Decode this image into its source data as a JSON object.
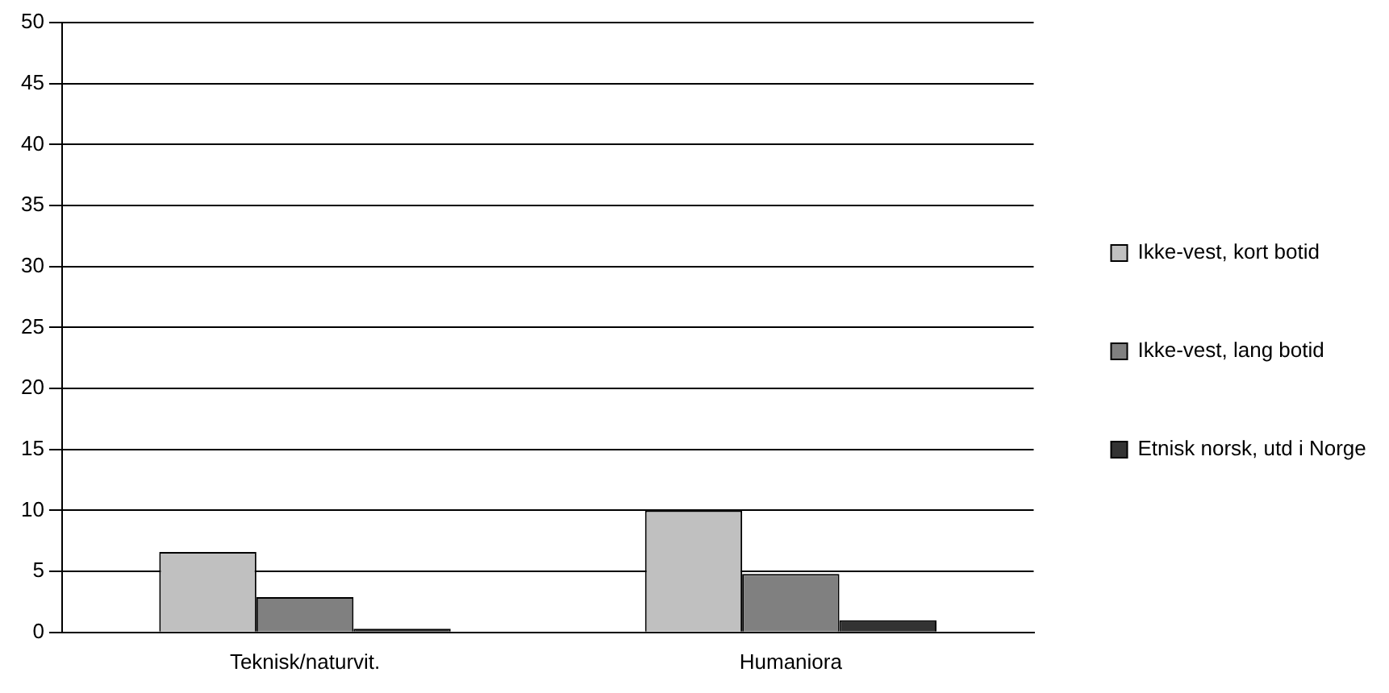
{
  "chart_data": {
    "type": "bar",
    "categories": [
      "Teknisk/naturvit.",
      "Humaniora"
    ],
    "series": [
      {
        "name": "Ikke-vest, kort botid",
        "color": "#c0c0c0",
        "values": [
          6.6,
          10.0
        ]
      },
      {
        "name": "Ikke-vest, lang botid",
        "color": "#808080",
        "values": [
          2.9,
          4.8
        ]
      },
      {
        "name": "Etnisk norsk, utd i Norge",
        "color": "#333333",
        "values": [
          0.3,
          1.0
        ]
      }
    ],
    "ylim": [
      0,
      50
    ],
    "yticks": [
      0,
      5,
      10,
      15,
      20,
      25,
      30,
      35,
      40,
      45,
      50
    ],
    "grid": "y",
    "legend": "right"
  }
}
